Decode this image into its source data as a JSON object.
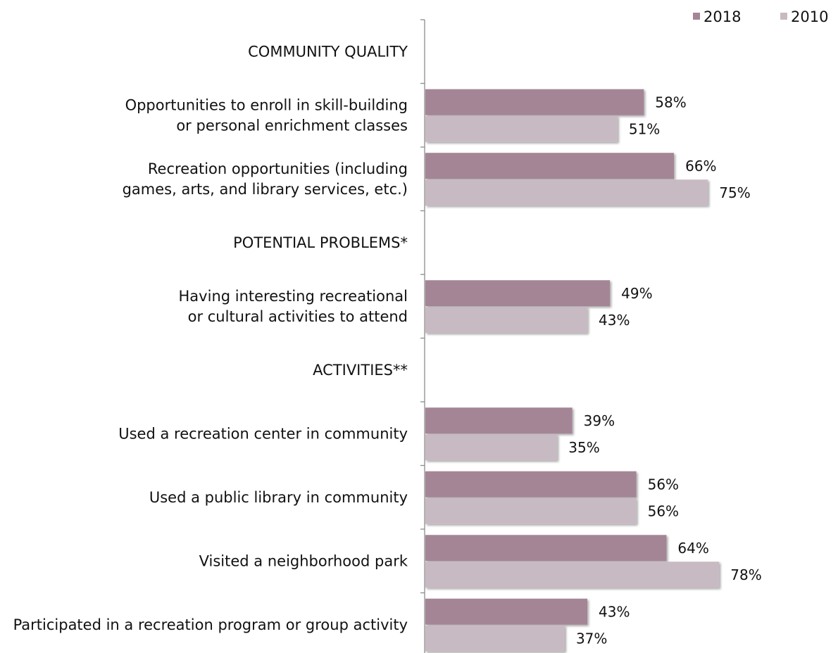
{
  "chart_data": {
    "type": "bar",
    "orientation": "horizontal",
    "legend_position": "top-right",
    "grid": false,
    "xlim": [
      0,
      100
    ],
    "series": [
      {
        "name": "2018",
        "color": "#a48596"
      },
      {
        "name": "2010",
        "color": "#c8bac3"
      }
    ],
    "rows": [
      {
        "label_lines": [
          "COMMUNITY QUALITY"
        ],
        "header": true
      },
      {
        "label_lines": [
          "Opportunities to enroll in skill-building",
          "or personal enrichment classes"
        ],
        "values": [
          58,
          51
        ],
        "value_labels": [
          "58%",
          "51%"
        ]
      },
      {
        "label_lines": [
          "Recreation opportunities (including",
          "games, arts, and library services, etc.)"
        ],
        "values": [
          66,
          75
        ],
        "value_labels": [
          "66%",
          "75%"
        ]
      },
      {
        "label_lines": [
          "POTENTIAL PROBLEMS*"
        ],
        "header": true
      },
      {
        "label_lines": [
          "Having interesting recreational",
          "or cultural activities to attend"
        ],
        "values": [
          49,
          43
        ],
        "value_labels": [
          "49%",
          "43%"
        ]
      },
      {
        "label_lines": [
          "ACTIVITIES**"
        ],
        "header": true
      },
      {
        "label_lines": [
          "Used a recreation center in community"
        ],
        "values": [
          39,
          35
        ],
        "value_labels": [
          "39%",
          "35%"
        ]
      },
      {
        "label_lines": [
          "Used a public library in community"
        ],
        "values": [
          56,
          56
        ],
        "value_labels": [
          "56%",
          "56%"
        ]
      },
      {
        "label_lines": [
          "Visited a neighborhood park"
        ],
        "values": [
          64,
          78
        ],
        "value_labels": [
          "64%",
          "78%"
        ]
      },
      {
        "label_lines": [
          "Participated in a recreation program or group activity"
        ],
        "values": [
          43,
          37
        ],
        "value_labels": [
          "43%",
          "37%"
        ]
      }
    ]
  }
}
